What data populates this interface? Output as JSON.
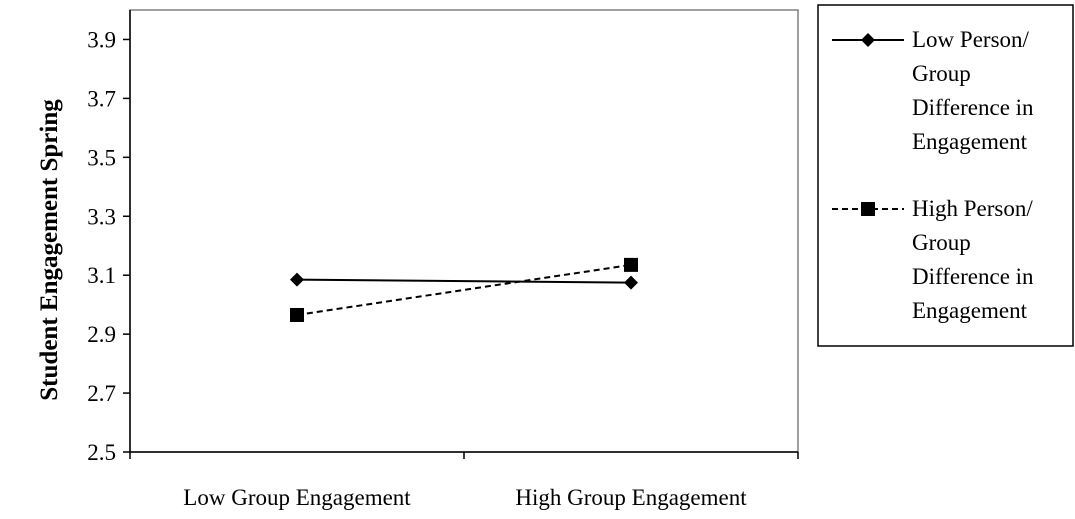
{
  "chart_data": {
    "type": "line",
    "title": "",
    "xlabel": "",
    "ylabel": "Student Engagement Spring",
    "categories": [
      "Low Group Engagement",
      "High Group Engagement"
    ],
    "ylim": [
      2.5,
      4.0
    ],
    "yticks": [
      "2.5",
      "2.7",
      "2.9",
      "3.1",
      "3.3",
      "3.5",
      "3.7",
      "3.9"
    ],
    "grid": false,
    "legend_position": "right",
    "series": [
      {
        "name_lines": [
          "Low Person/",
          "Group",
          "Difference in",
          "Engagement"
        ],
        "values": [
          3.085,
          3.075
        ],
        "marker": "diamond",
        "line_style": "solid",
        "color": "#000000"
      },
      {
        "name_lines": [
          "High Person/",
          "Group",
          "Difference in",
          "Engagement"
        ],
        "values": [
          2.965,
          3.135
        ],
        "marker": "square",
        "line_style": "dashed",
        "color": "#000000"
      }
    ]
  }
}
